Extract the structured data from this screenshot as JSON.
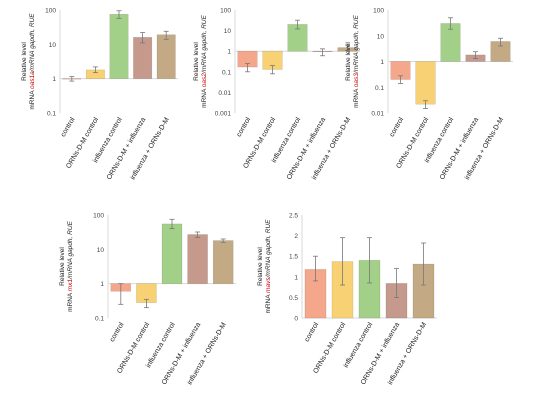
{
  "colors": {
    "control": "#f4a78a",
    "orns_control": "#f9d175",
    "influenza_control": "#a3d088",
    "orns_influenza": "#c59a8c",
    "influenza_orns": "#c3aa85",
    "gene_red": "#c00000",
    "axis_text": "#444444",
    "error_bar": "#777777"
  },
  "chart_data": [
    {
      "id": "oas1a",
      "type": "bar",
      "scale": "log",
      "baseline": 1,
      "ylim": [
        0.1,
        100
      ],
      "ticks": [
        "0.1",
        "1",
        "10",
        "100"
      ],
      "ylabel_line1": "Relative level",
      "ylabel_prefix": "mRNA ",
      "gene": "oas1a",
      "ylabel_suffix": "/mRNA gapdh, RUE",
      "categories": [
        "control",
        "ORNs-D-M control",
        "influenza control",
        "ORNs-D-M + influenza",
        "influenza + ORNs-D-M"
      ],
      "values": [
        1.0,
        1.8,
        75,
        16,
        19
      ],
      "errors": [
        [
          0.85,
          1.15
        ],
        [
          1.5,
          2.2
        ],
        [
          57,
          95
        ],
        [
          11,
          22
        ],
        [
          14,
          24
        ]
      ]
    },
    {
      "id": "oas2",
      "type": "bar",
      "scale": "log",
      "baseline": 1,
      "ylim": [
        0.001,
        100
      ],
      "ticks": [
        "0.001",
        "0.01",
        "0.1",
        "1",
        "10",
        "100"
      ],
      "ylabel_line1": "Relative level",
      "ylabel_prefix": "mRNA ",
      "gene": "oas2",
      "ylabel_suffix": "/mRNA gapdh, RUE",
      "categories": [
        "control",
        "ORNs-D-M control",
        "influenza control",
        "ORNs-D-M + influenza",
        "influenza + ORNs-D-M"
      ],
      "values": [
        0.17,
        0.13,
        20,
        0.95,
        1.5
      ],
      "errors": [
        [
          0.1,
          0.25
        ],
        [
          0.08,
          0.2
        ],
        [
          12,
          32
        ],
        [
          0.6,
          1.3
        ],
        [
          1.1,
          2.0
        ]
      ]
    },
    {
      "id": "oas3",
      "type": "bar",
      "scale": "log",
      "baseline": 1,
      "ylim": [
        0.01,
        100
      ],
      "ticks": [
        "0.01",
        "0.1",
        "1",
        "10",
        "100"
      ],
      "ylabel_line1": "Relative level",
      "ylabel_prefix": "mRNA ",
      "gene": "oas3",
      "ylabel_suffix": "/mRNA gapdh, RUE",
      "categories": [
        "control",
        "ORNs-D-M control",
        "influenza control",
        "ORNs-D-M + influenza",
        "influenza + ORNs-D-M"
      ],
      "values": [
        0.2,
        0.022,
        30,
        1.8,
        6
      ],
      "errors": [
        [
          0.14,
          0.28
        ],
        [
          0.015,
          0.03
        ],
        [
          18,
          50
        ],
        [
          1.3,
          2.4
        ],
        [
          4,
          8
        ]
      ]
    },
    {
      "id": "mx1",
      "type": "bar",
      "scale": "log",
      "baseline": 1,
      "ylim": [
        0.1,
        100
      ],
      "ticks": [
        "0.1",
        "1",
        "10",
        "100"
      ],
      "ylabel_line1": "Relative level",
      "ylabel_prefix": "mRNA ",
      "gene": "mx1",
      "ylabel_suffix": "/mRNA gapdh, RUE",
      "categories": [
        "control",
        "ORNs-D-M control",
        "influenza control",
        "ORNs-D-M + influenza",
        "influenza + ORNs-D-M"
      ],
      "values": [
        0.6,
        0.28,
        55,
        27,
        18
      ],
      "errors": [
        [
          0.25,
          1.0
        ],
        [
          0.2,
          0.35
        ],
        [
          40,
          75
        ],
        [
          22,
          32
        ],
        [
          16,
          20
        ]
      ]
    },
    {
      "id": "mavs",
      "type": "bar",
      "scale": "linear",
      "baseline": 0,
      "ylim": [
        0,
        2.5
      ],
      "ticks": [
        "0",
        "0.5",
        "1",
        "1.5",
        "2",
        "2.5"
      ],
      "ylabel_line1": "Relative level",
      "ylabel_prefix": "mRNA ",
      "gene": "mavs",
      "ylabel_suffix": "/mRNA gapdh, RUE",
      "categories": [
        "control",
        "ORNs-D-M control",
        "influenza control",
        "ORNs-D-M + influenza",
        "influenza + ORNs-D-M"
      ],
      "values": [
        1.18,
        1.37,
        1.4,
        0.84,
        1.31
      ],
      "errors": [
        [
          0.9,
          1.5
        ],
        [
          0.8,
          1.95
        ],
        [
          0.85,
          1.95
        ],
        [
          0.5,
          1.2
        ],
        [
          0.8,
          1.82
        ]
      ]
    }
  ]
}
